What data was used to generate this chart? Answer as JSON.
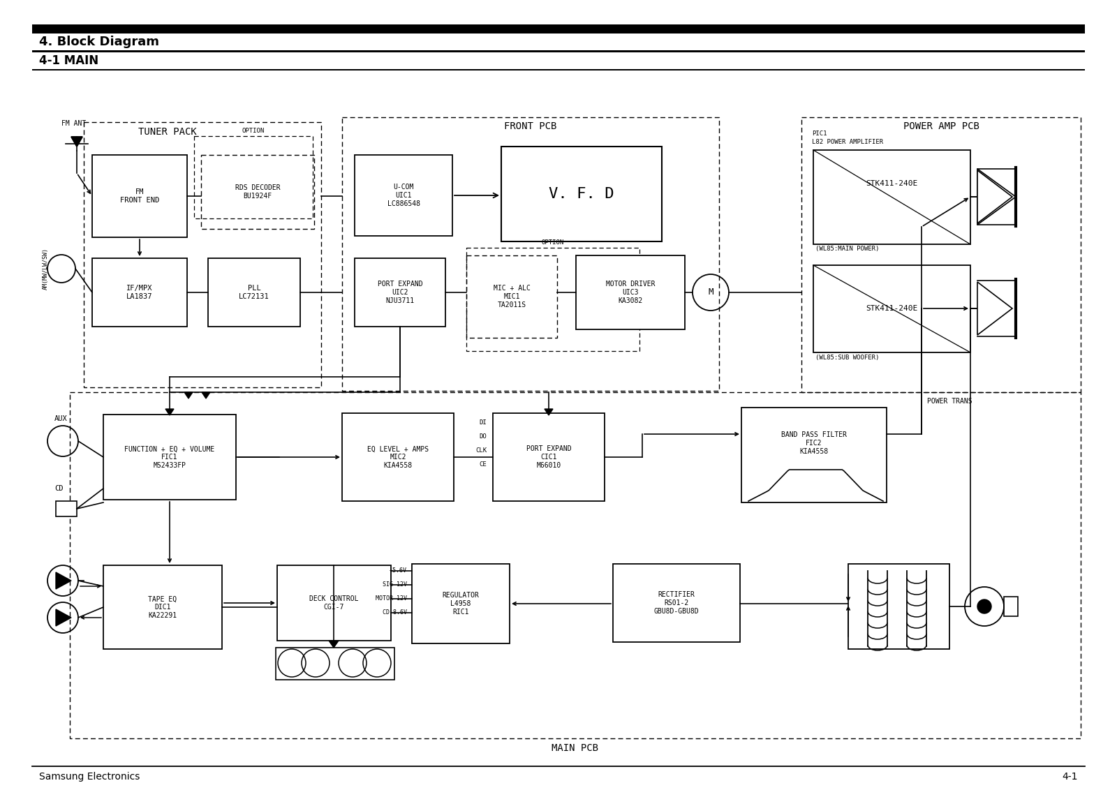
{
  "title1": "4. Block Diagram",
  "title2": "4-1 MAIN",
  "footer_left": "Samsung Electronics",
  "footer_right": "4-1",
  "bg_color": "#ffffff"
}
